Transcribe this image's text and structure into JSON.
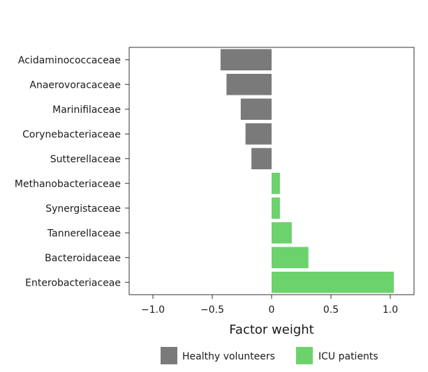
{
  "chart_data": {
    "type": "bar",
    "orientation": "horizontal",
    "categories": [
      "Acidaminococcaceae",
      "Anaerovoracaceae",
      "Marinifilaceae",
      "Corynebacteriaceae",
      "Sutterellaceae",
      "Methanobacteriaceae",
      "Synergistaceae",
      "Tannerellaceae",
      "Bacteroidaceae",
      "Enterobacteriaceae"
    ],
    "values": [
      -0.43,
      -0.38,
      -0.26,
      -0.22,
      -0.17,
      0.07,
      0.07,
      0.17,
      0.31,
      1.03
    ],
    "groups": [
      "Healthy volunteers",
      "Healthy volunteers",
      "Healthy volunteers",
      "Healthy volunteers",
      "Healthy volunteers",
      "ICU patients",
      "ICU patients",
      "ICU patients",
      "ICU patients",
      "ICU patients"
    ],
    "xlabel": "Factor weight",
    "ylabel": "",
    "xlim": [
      -1.2,
      1.2
    ],
    "xticks": [
      -1.0,
      -0.5,
      0,
      0.5,
      1.0
    ],
    "xtick_labels": [
      "−1.0",
      "−0.5",
      "0",
      "0.5",
      "1.0"
    ],
    "legend": [
      {
        "name": "Healthy volunteers",
        "color": "#7a7a7a"
      },
      {
        "name": "ICU patients",
        "color": "#6cd36c"
      }
    ],
    "legend_position": "bottom",
    "grid": false
  }
}
